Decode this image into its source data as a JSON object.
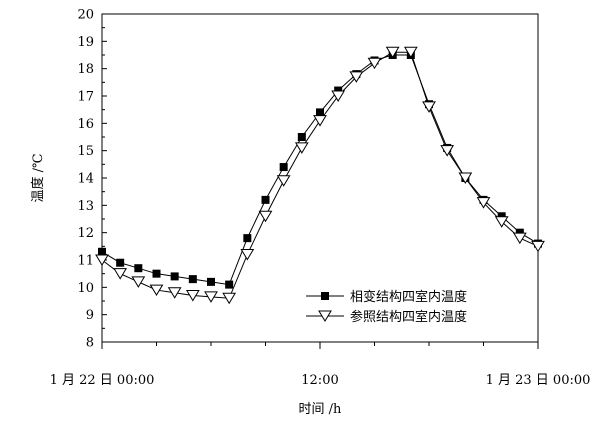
{
  "chart_data": {
    "type": "line",
    "xlabel": "时间 /h",
    "ylabel": "温度 /℃",
    "xlim": [
      0,
      24
    ],
    "ylim": [
      8,
      20
    ],
    "yticks": [
      8,
      9,
      10,
      11,
      12,
      13,
      14,
      15,
      16,
      17,
      18,
      19,
      20
    ],
    "xticks": [
      {
        "value": 0,
        "label": "1 月 22 日 00:00"
      },
      {
        "value": 12,
        "label": "12:00"
      },
      {
        "value": 24,
        "label": "1 月 23 日 00:00"
      }
    ],
    "grid": false,
    "legend_position": "bottom-right",
    "series": [
      {
        "name": "相变结构四室内温度",
        "marker": "filled-square",
        "x": [
          0,
          1,
          2,
          3,
          4,
          5,
          6,
          7,
          8,
          9,
          10,
          11,
          12,
          13,
          14,
          15,
          16,
          17,
          18,
          19,
          20,
          21,
          22,
          23,
          24
        ],
        "y": [
          11.3,
          10.9,
          10.7,
          10.5,
          10.4,
          10.3,
          10.2,
          10.1,
          11.8,
          13.2,
          14.4,
          15.5,
          16.4,
          17.2,
          17.8,
          18.3,
          18.5,
          18.5,
          16.7,
          15.1,
          14.0,
          13.2,
          12.6,
          12.0,
          11.6
        ],
        "color": "#000000"
      },
      {
        "name": "参照结构四室内温度",
        "marker": "open-triangle-down",
        "x": [
          0,
          1,
          2,
          3,
          4,
          5,
          6,
          7,
          8,
          9,
          10,
          11,
          12,
          13,
          14,
          15,
          16,
          17,
          18,
          19,
          20,
          21,
          22,
          23,
          24
        ],
        "y": [
          11.0,
          10.5,
          10.2,
          9.9,
          9.8,
          9.7,
          9.65,
          9.6,
          11.2,
          12.6,
          13.9,
          15.1,
          16.1,
          17.0,
          17.7,
          18.2,
          18.6,
          18.6,
          16.6,
          15.0,
          14.0,
          13.1,
          12.4,
          11.8,
          11.5
        ],
        "color": "#000000"
      }
    ]
  }
}
